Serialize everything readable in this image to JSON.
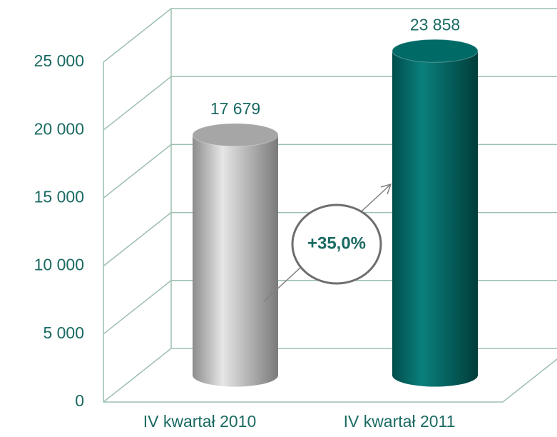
{
  "chart_data": {
    "type": "bar",
    "categories": [
      "IV kwartał 2010",
      "IV kwartał 2011"
    ],
    "values": [
      17679,
      23858
    ],
    "value_labels": [
      "17 679",
      "23 858"
    ],
    "colors": [
      "#a6a6a6",
      "#006a67"
    ],
    "ylim": [
      0,
      25000
    ],
    "yticks": [
      {
        "value": 0,
        "label": "0"
      },
      {
        "value": 5000,
        "label": "5 000"
      },
      {
        "value": 10000,
        "label": "10 000"
      },
      {
        "value": 15000,
        "label": "15 000"
      },
      {
        "value": 20000,
        "label": "20 000"
      },
      {
        "value": 25000,
        "label": "25 000"
      }
    ],
    "grid": true,
    "annotation": "+35,0%"
  }
}
